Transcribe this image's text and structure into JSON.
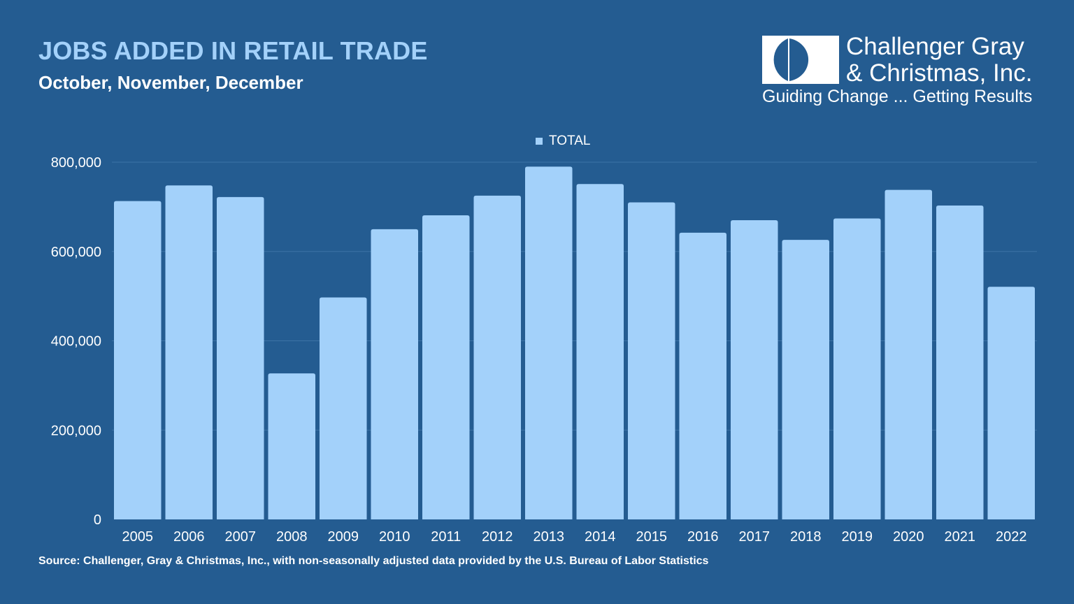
{
  "header": {
    "title": "JOBS ADDED IN RETAIL TRADE",
    "subtitle": "October, November, December"
  },
  "logo": {
    "name_line1": "Challenger Gray",
    "name_line2": "& Christmas, Inc.",
    "tagline": "Guiding Change ... Getting Results"
  },
  "footer": {
    "source": "Source: Challenger, Gray & Christmas, Inc., with non-seasonally adjusted data provided by the U.S. Bureau of Labor Statistics"
  },
  "colors": {
    "background": "#245c91",
    "bar": "#a3d1fa",
    "title": "#a3d1fa",
    "gridline": "#3d73a6",
    "text": "#ffffff"
  },
  "chart_data": {
    "type": "bar",
    "title": "JOBS ADDED IN RETAIL TRADE",
    "subtitle": "October, November, December",
    "categories": [
      "2005",
      "2006",
      "2007",
      "2008",
      "2009",
      "2010",
      "2011",
      "2012",
      "2013",
      "2014",
      "2015",
      "2016",
      "2017",
      "2018",
      "2019",
      "2020",
      "2021",
      "2022"
    ],
    "series": [
      {
        "name": "TOTAL",
        "values": [
          713000,
          748000,
          722000,
          327000,
          497000,
          650000,
          681000,
          725000,
          790000,
          751000,
          710000,
          642000,
          670000,
          626000,
          674000,
          738000,
          703000,
          521000
        ]
      }
    ],
    "y_ticks": [
      0,
      200000,
      400000,
      600000,
      800000
    ],
    "y_tick_labels": [
      "0",
      "200,000",
      "400,000",
      "600,000",
      "800,000"
    ],
    "ylim": [
      0,
      800000
    ],
    "xlabel": "",
    "ylabel": "",
    "grid": true,
    "legend_position": "top-center"
  }
}
